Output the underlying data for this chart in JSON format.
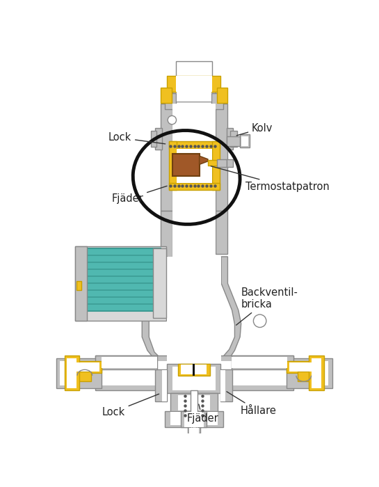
{
  "bg_color": "#ffffff",
  "gray": "#c0c0c0",
  "gray_dark": "#888888",
  "gray_light": "#d8d8d8",
  "yellow": "#f0c020",
  "yellow_dark": "#c8a000",
  "teal": "#50b8b0",
  "teal_dark": "#389890",
  "brown": "#a05828",
  "black": "#111111",
  "white": "#ffffff",
  "text_color": "#222222",
  "labels": {
    "Lock_top": "Lock",
    "Kolv": "Kolv",
    "Fjaeder_top": "Fjäder",
    "Termostatpatron": "Termostatpatron",
    "Backventil": "Backventil-\nbricka",
    "Lock_bot": "Lock",
    "Hallare": "Hållare",
    "Fjaeder_bot": "Fjäder"
  }
}
